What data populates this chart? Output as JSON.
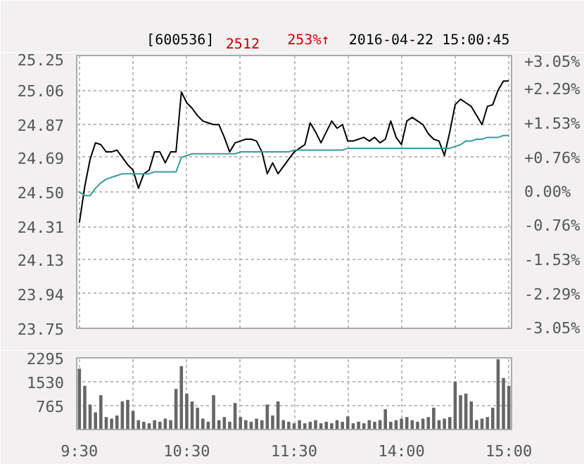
{
  "chart_data": [
    {
      "type": "line",
      "annotations": [
        "[600536]",
        "2512",
        "253%↑",
        "2016-04-22 15:00:45"
      ],
      "categories": [
        null,
        null,
        null,
        null,
        null,
        null,
        null,
        null,
        null,
        null,
        null,
        null,
        null,
        null,
        null,
        null,
        null,
        null,
        null,
        null,
        null,
        null,
        null,
        null,
        null,
        null,
        null,
        null,
        null,
        null,
        null,
        null,
        null,
        null,
        null,
        null,
        null,
        null,
        null,
        null,
        null,
        null,
        null,
        null,
        null,
        null,
        null,
        null,
        null,
        null,
        null,
        null,
        null,
        null,
        null,
        null,
        null,
        null,
        null,
        null,
        null,
        null,
        null,
        null,
        null,
        null,
        null,
        null,
        null,
        null,
        null,
        null,
        null,
        null,
        null,
        null,
        null,
        null,
        null,
        null,
        null
      ],
      "ylim": [
        23.75,
        25.25
      ],
      "yticks": [
        {
          "value": 23.75,
          "label": "23.75"
        },
        {
          "value": 23.94,
          "label": "23.94"
        },
        {
          "value": 24.13,
          "label": "24.13"
        },
        {
          "value": 24.31,
          "label": "24.31"
        },
        {
          "value": 24.5,
          "label": "24.50"
        },
        {
          "value": 24.69,
          "label": "24.69"
        },
        {
          "value": 24.87,
          "label": "24.87"
        },
        {
          "value": 25.06,
          "label": "25.06"
        },
        {
          "value": 25.25,
          "label": "25.25"
        }
      ],
      "y2lim": [
        -3.05,
        3.05
      ],
      "y2ticks": [
        {
          "value": -3.05,
          "label": "-3.05%"
        },
        {
          "value": -2.29,
          "label": "-2.29%"
        },
        {
          "value": -1.53,
          "label": "-1.53%"
        },
        {
          "value": -0.76,
          "label": "-0.76%"
        },
        {
          "value": 0,
          "label": "0.00%"
        },
        {
          "value": 0.76,
          "label": "+0.76%"
        },
        {
          "value": 1.53,
          "label": "+1.53%"
        },
        {
          "value": 2.29,
          "label": "+2.29%"
        },
        {
          "value": 3.05,
          "label": "+3.05%"
        }
      ],
      "grid": true,
      "tick_labels": "y",
      "line_style": "solid",
      "series": [
        {
          "color": "#000000",
          "values": [
            24.33,
            24.53,
            24.68,
            24.77,
            24.76,
            24.72,
            24.72,
            24.73,
            24.69,
            24.65,
            24.62,
            24.52,
            24.6,
            24.62,
            24.72,
            24.72,
            24.66,
            24.72,
            24.72,
            25.05,
            24.99,
            24.96,
            24.92,
            24.89,
            24.88,
            24.87,
            24.87,
            24.8,
            24.72,
            24.77,
            24.78,
            24.79,
            24.79,
            24.78,
            24.72,
            24.6,
            24.66,
            24.6,
            24.64,
            24.68,
            24.72,
            24.74,
            24.76,
            24.88,
            24.83,
            24.77,
            24.83,
            24.89,
            24.85,
            24.87,
            24.78,
            24.78,
            24.79,
            24.8,
            24.78,
            24.8,
            24.77,
            24.79,
            24.89,
            24.8,
            24.76,
            24.89,
            24.91,
            24.89,
            24.87,
            24.82,
            24.79,
            24.78,
            24.7,
            24.83,
            24.98,
            25.01,
            24.99,
            24.97,
            24.92,
            24.87,
            24.97,
            24.98,
            25.06,
            25.11,
            25.11
          ]
        },
        {
          "color": "#3c9a9a",
          "values": [
            24.5,
            24.48,
            24.48,
            24.52,
            24.55,
            24.57,
            24.58,
            24.59,
            24.6,
            24.6,
            24.6,
            24.6,
            24.6,
            24.6,
            24.61,
            24.61,
            24.61,
            24.61,
            24.61,
            24.69,
            24.7,
            24.71,
            24.71,
            24.71,
            24.71,
            24.71,
            24.71,
            24.71,
            24.71,
            24.71,
            24.72,
            24.72,
            24.72,
            24.72,
            24.72,
            24.72,
            24.72,
            24.72,
            24.72,
            24.72,
            24.73,
            24.73,
            24.73,
            24.73,
            24.73,
            24.73,
            24.73,
            24.73,
            24.73,
            24.73,
            24.74,
            24.74,
            24.74,
            24.74,
            24.74,
            24.74,
            24.74,
            24.74,
            24.74,
            24.74,
            24.74,
            24.74,
            24.74,
            24.74,
            24.74,
            24.74,
            24.74,
            24.74,
            24.74,
            24.74,
            24.75,
            24.76,
            24.78,
            24.78,
            24.79,
            24.79,
            24.8,
            24.8,
            24.8,
            24.81,
            24.81
          ]
        }
      ]
    },
    {
      "type": "bar",
      "categories": [
        "9:30",
        null,
        null,
        null,
        null,
        null,
        null,
        null,
        null,
        null,
        null,
        null,
        null,
        null,
        null,
        null,
        null,
        null,
        null,
        null,
        "10:30",
        null,
        null,
        null,
        null,
        null,
        null,
        null,
        null,
        null,
        null,
        null,
        null,
        null,
        null,
        null,
        null,
        null,
        null,
        null,
        "11:30",
        null,
        null,
        null,
        null,
        null,
        null,
        null,
        null,
        null,
        null,
        null,
        null,
        null,
        null,
        null,
        null,
        null,
        null,
        null,
        "14:00",
        null,
        null,
        null,
        null,
        null,
        null,
        null,
        null,
        null,
        null,
        null,
        null,
        null,
        null,
        null,
        null,
        null,
        null,
        null,
        "15:00"
      ],
      "ylim": [
        0,
        2295
      ],
      "yticks": [
        765,
        1530,
        2295
      ],
      "grid": true,
      "color": "#666666",
      "values": [
        1950,
        1400,
        800,
        550,
        1100,
        400,
        350,
        450,
        900,
        950,
        600,
        300,
        250,
        200,
        300,
        250,
        350,
        300,
        1300,
        2030,
        1150,
        900,
        700,
        350,
        250,
        1100,
        300,
        400,
        250,
        850,
        400,
        300,
        250,
        350,
        300,
        800,
        450,
        900,
        300,
        250,
        200,
        300,
        200,
        250,
        300,
        200,
        250,
        200,
        300,
        250,
        420,
        200,
        250,
        200,
        300,
        250,
        300,
        650,
        250,
        300,
        350,
        400,
        300,
        250,
        350,
        400,
        700,
        300,
        350,
        400,
        1530,
        1100,
        1150,
        900,
        300,
        350,
        400,
        700,
        2250,
        1650,
        1400
      ]
    }
  ]
}
